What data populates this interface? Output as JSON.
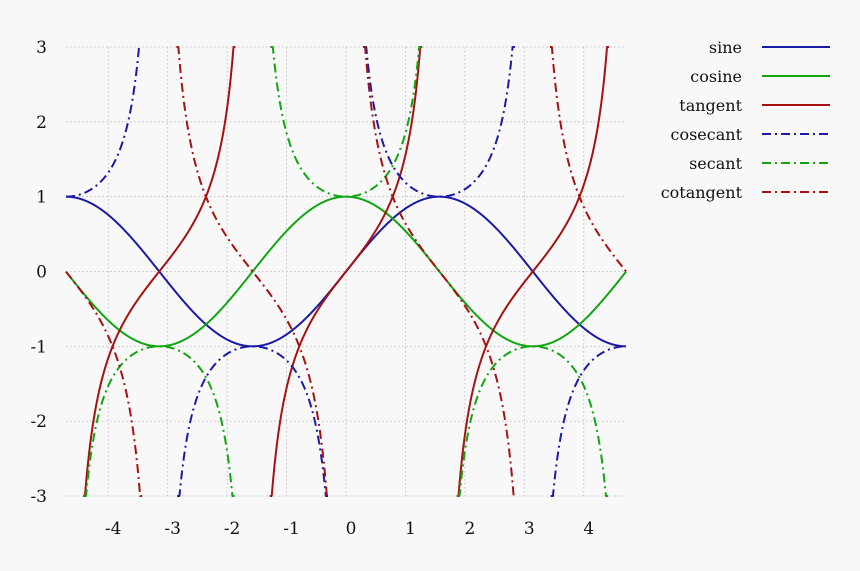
{
  "chart_data": {
    "type": "line",
    "title": "",
    "xlabel": "",
    "ylabel": "",
    "xlim": [
      -4.71,
      4.71
    ],
    "ylim": [
      -3,
      3
    ],
    "grid": true,
    "legend_position": "top-right",
    "x_ticks": [
      {
        "value": -4,
        "label": "-4"
      },
      {
        "value": -3,
        "label": "-3"
      },
      {
        "value": -2,
        "label": "-2"
      },
      {
        "value": -1,
        "label": "-1"
      },
      {
        "value": 0,
        "label": "0"
      },
      {
        "value": 1,
        "label": "1"
      },
      {
        "value": 2,
        "label": "2"
      },
      {
        "value": 3,
        "label": "3"
      },
      {
        "value": 4,
        "label": "4"
      }
    ],
    "y_ticks": [
      {
        "value": 3,
        "label": "3"
      },
      {
        "value": 2,
        "label": "2"
      },
      {
        "value": 1,
        "label": "1"
      },
      {
        "value": 0,
        "label": "0"
      },
      {
        "value": -1,
        "label": "-1"
      },
      {
        "value": -2,
        "label": "-2"
      },
      {
        "value": -3,
        "label": "-3"
      }
    ],
    "series": [
      {
        "name": "sine",
        "function": "sin",
        "color": "#1a1aa6",
        "style": "solid"
      },
      {
        "name": "cosine",
        "function": "cos",
        "color": "#11a611",
        "style": "solid"
      },
      {
        "name": "tangent",
        "function": "tan",
        "color": "#a61111",
        "style": "solid"
      },
      {
        "name": "cosecant",
        "function": "csc",
        "color": "#1a1aa6",
        "style": "dash-dot"
      },
      {
        "name": "secant",
        "function": "sec",
        "color": "#11a611",
        "style": "dash-dot"
      },
      {
        "name": "cotangent",
        "function": "cot",
        "color": "#a61111",
        "style": "dash-dot"
      }
    ]
  }
}
